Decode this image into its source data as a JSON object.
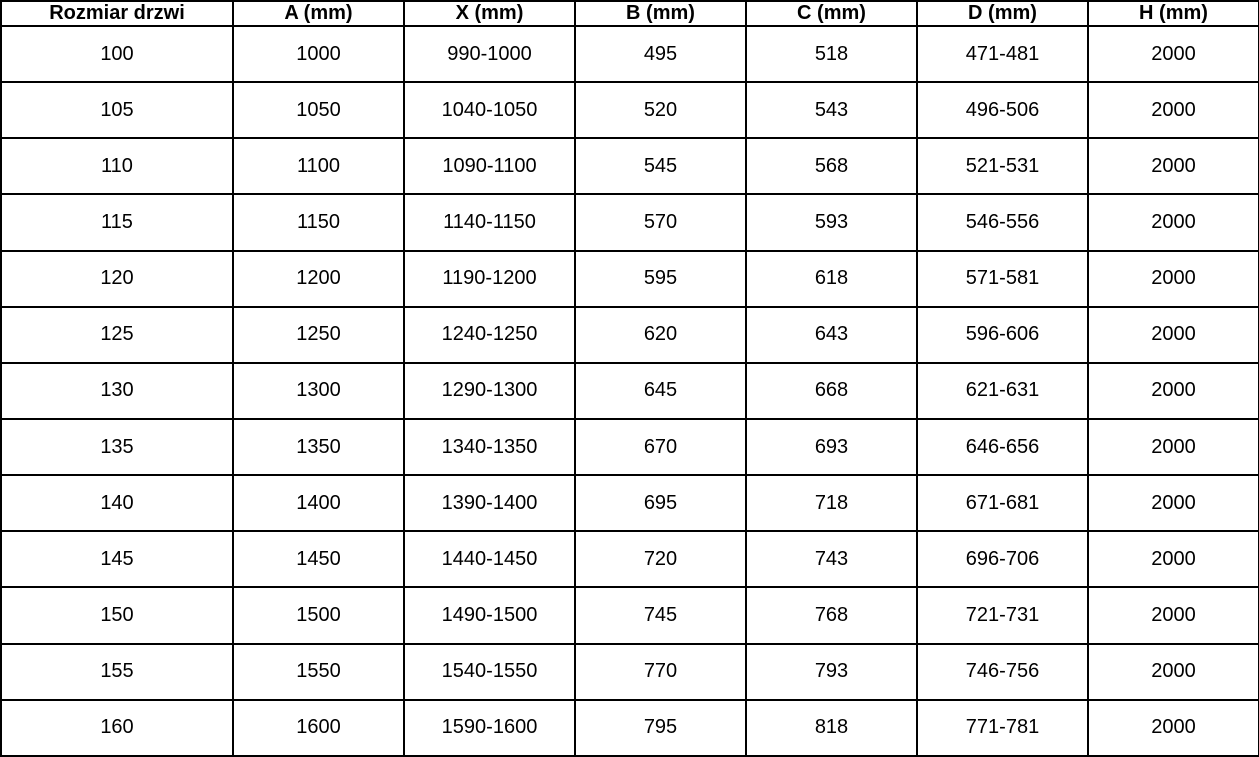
{
  "table": {
    "name": "door-size-dimensions-table",
    "columns": [
      "Rozmiar drzwi",
      "A (mm)",
      "X (mm)",
      "B (mm)",
      "C (mm)",
      "D (mm)",
      "H (mm)"
    ],
    "rows": [
      [
        "100",
        "1000",
        "990-1000",
        "495",
        "518",
        "471-481",
        "2000"
      ],
      [
        "105",
        "1050",
        "1040-1050",
        "520",
        "543",
        "496-506",
        "2000"
      ],
      [
        "110",
        "1100",
        "1090-1100",
        "545",
        "568",
        "521-531",
        "2000"
      ],
      [
        "115",
        "1150",
        "1140-1150",
        "570",
        "593",
        "546-556",
        "2000"
      ],
      [
        "120",
        "1200",
        "1190-1200",
        "595",
        "618",
        "571-581",
        "2000"
      ],
      [
        "125",
        "1250",
        "1240-1250",
        "620",
        "643",
        "596-606",
        "2000"
      ],
      [
        "130",
        "1300",
        "1290-1300",
        "645",
        "668",
        "621-631",
        "2000"
      ],
      [
        "135",
        "1350",
        "1340-1350",
        "670",
        "693",
        "646-656",
        "2000"
      ],
      [
        "140",
        "1400",
        "1390-1400",
        "695",
        "718",
        "671-681",
        "2000"
      ],
      [
        "145",
        "1450",
        "1440-1450",
        "720",
        "743",
        "696-706",
        "2000"
      ],
      [
        "150",
        "1500",
        "1490-1500",
        "745",
        "768",
        "721-731",
        "2000"
      ],
      [
        "155",
        "1550",
        "1540-1550",
        "770",
        "793",
        "746-756",
        "2000"
      ],
      [
        "160",
        "1600",
        "1590-1600",
        "795",
        "818",
        "771-781",
        "2000"
      ]
    ],
    "colors": {
      "border": "#000000",
      "text": "#000000",
      "background": "#ffffff"
    }
  }
}
